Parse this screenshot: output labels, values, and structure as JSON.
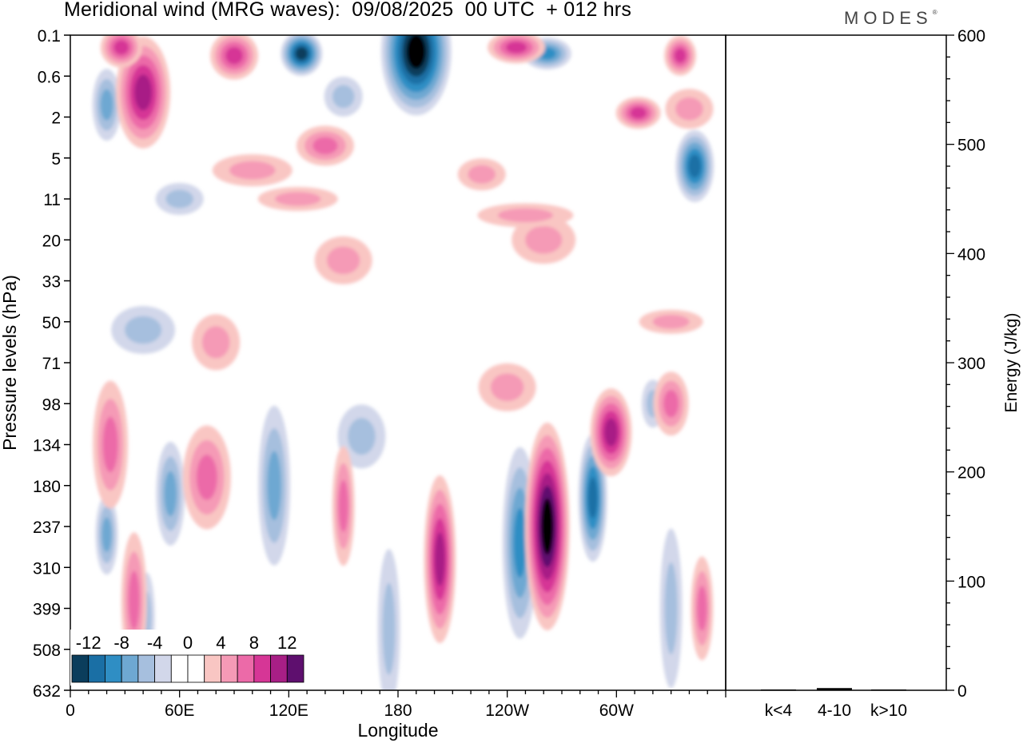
{
  "header": {
    "title": "Meridional wind (MRG waves):  09/08/2025  00 UTC  + 012 hrs",
    "logo": "MODES",
    "logo_mark": "®"
  },
  "chart_data": [
    {
      "type": "contour",
      "title": "Meridional wind (MRG waves)",
      "xlabel": "Longitude",
      "ylabel": "Pressure levels (hPa)",
      "x_ticks": [
        "0",
        "60E",
        "120E",
        "180",
        "120W",
        "60W"
      ],
      "x_tick_degrees": [
        0,
        60,
        120,
        180,
        240,
        300
      ],
      "xlim": [
        0,
        360
      ],
      "y_ticks": [
        "0.1",
        "0.6",
        "2",
        "5",
        "11",
        "20",
        "33",
        "50",
        "71",
        "98",
        "134",
        "180",
        "237",
        "310",
        "399",
        "508",
        "632"
      ],
      "colorbar": {
        "tick_labels": [
          "-12",
          "-8",
          "-4",
          "0",
          "4",
          "8",
          "12"
        ],
        "levels": [
          -14,
          -12,
          -10,
          -8,
          -6,
          -4,
          -2,
          0,
          2,
          4,
          6,
          8,
          10,
          12,
          14
        ],
        "colors": [
          "#0b3d5c",
          "#1a6fa5",
          "#2f8ec4",
          "#6ea8d2",
          "#a6bfde",
          "#d2d7ea",
          "#ffffff",
          "#ffffff",
          "#f9c6c3",
          "#f59ab6",
          "#ec6aa8",
          "#d63696",
          "#a81f86",
          "#5e0f6e"
        ]
      },
      "features": [
        {
          "kind": "neg",
          "lon": 190,
          "level": "0.1",
          "peak": -14
        },
        {
          "kind": "neg",
          "lon": 127,
          "level": "0.1",
          "peak": -12
        },
        {
          "kind": "neg",
          "lon": 343,
          "level": "5",
          "peak": -10
        },
        {
          "kind": "neg",
          "lon": 287,
          "level": "180",
          "peak": -10
        },
        {
          "kind": "neg",
          "lon": 247,
          "level": "237",
          "peak": -8
        },
        {
          "kind": "pos",
          "lon": 262,
          "level": "237",
          "peak": 14
        },
        {
          "kind": "pos",
          "lon": 203,
          "level": "310",
          "peak": 10
        },
        {
          "kind": "pos",
          "lon": 297,
          "level": "134",
          "peak": 10
        },
        {
          "kind": "pos",
          "lon": 40,
          "level": "0.6",
          "peak": 10
        },
        {
          "kind": "pos",
          "lon": 28,
          "level": "0.1",
          "peak": 8
        },
        {
          "kind": "pos",
          "lon": 90,
          "level": "0.1",
          "peak": 8
        },
        {
          "kind": "pos",
          "lon": 312,
          "level": "2",
          "peak": 8
        }
      ]
    },
    {
      "type": "bar",
      "ylabel": "Energy (J/kg)",
      "categories": [
        "k<4",
        "4-10",
        "k>10"
      ],
      "values": [
        0,
        2,
        0
      ],
      "ylim": [
        0,
        600
      ],
      "y_ticks": [
        "0",
        "100",
        "200",
        "300",
        "400",
        "500",
        "600"
      ]
    }
  ]
}
